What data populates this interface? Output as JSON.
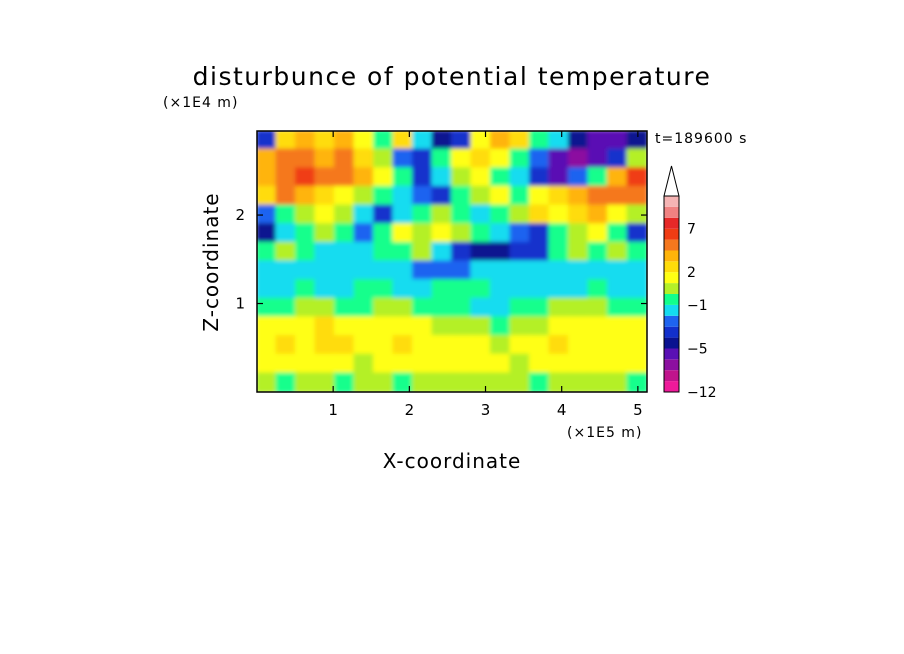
{
  "chart_data": {
    "type": "heatmap",
    "title": "disturbunce of potential temperature",
    "time_label": "t=189600 s",
    "xlabel": "X-coordinate",
    "ylabel": "Z-coordinate",
    "x_unit": "(×1E5 m)",
    "y_unit": "(×1E4 m)",
    "xlim": [
      0,
      5.12
    ],
    "ylim": [
      0,
      2.95
    ],
    "x_ticks": [
      1,
      2,
      3,
      4,
      5
    ],
    "y_ticks": [
      1,
      2
    ],
    "x_tick_labels": [
      "1",
      "2",
      "3",
      "4",
      "5"
    ],
    "y_tick_labels": [
      "1",
      "2"
    ],
    "grid": false,
    "colorbar": {
      "labels": [
        {
          "value": 7,
          "text": "7"
        },
        {
          "value": 2,
          "text": "2"
        },
        {
          "value": -1,
          "text": "−1"
        },
        {
          "value": -5,
          "text": "−5"
        },
        {
          "value": -12,
          "text": "−12"
        }
      ],
      "levels": [
        {
          "to": -10,
          "color": "#ee1a9a"
        },
        {
          "to": -8,
          "color": "#c0148c"
        },
        {
          "to": -6,
          "color": "#8c10a0"
        },
        {
          "to": -5,
          "color": "#5a10b4"
        },
        {
          "to": -4,
          "color": "#0a1290"
        },
        {
          "to": -3,
          "color": "#1230cc"
        },
        {
          "to": -2,
          "color": "#1e64f0"
        },
        {
          "to": -1,
          "color": "#14dcf0"
        },
        {
          "to": 0,
          "color": "#12ff8c"
        },
        {
          "to": 1,
          "color": "#b4f028"
        },
        {
          "to": 2,
          "color": "#ffff14"
        },
        {
          "to": 3,
          "color": "#ffdc0a"
        },
        {
          "to": 4,
          "color": "#ffb40a"
        },
        {
          "to": 6,
          "color": "#f5781e"
        },
        {
          "to": 7,
          "color": "#f03c14"
        },
        {
          "to": 8,
          "color": "#e62828"
        },
        {
          "to": 9,
          "color": "#f08282"
        },
        {
          "to": 10,
          "color": "#f5b4b4"
        }
      ]
    },
    "field": {
      "description_levels": "rows from top (z≈2.95) to bottom (z≈0), columns from x=0 to x=5.12",
      "rows": [
        [
          -3,
          3,
          4,
          3,
          4,
          2,
          0,
          3,
          -1,
          -4,
          -3,
          2,
          4,
          3,
          0,
          -1,
          -4,
          -5,
          -5,
          -4
        ],
        [
          4,
          5,
          6,
          4,
          5,
          3,
          1,
          -2,
          -3,
          0,
          2,
          3,
          2,
          0,
          -2,
          -5,
          -7,
          -5,
          -3,
          1
        ],
        [
          4,
          6,
          7,
          5,
          6,
          4,
          2,
          0,
          -3,
          -1,
          1,
          2,
          0,
          -1,
          -3,
          -5,
          -2,
          0,
          4,
          7
        ],
        [
          3,
          5,
          4,
          3,
          2,
          1,
          0,
          -1,
          -2,
          -3,
          0,
          1,
          2,
          0,
          2,
          3,
          4,
          5,
          6,
          5
        ],
        [
          -2,
          0,
          1,
          2,
          1,
          -1,
          -3,
          -1,
          0,
          1,
          0,
          -1,
          0,
          1,
          3,
          2,
          3,
          4,
          2,
          1
        ],
        [
          -4,
          -1,
          0,
          1,
          0,
          -2,
          0,
          2,
          1,
          2,
          1,
          0,
          -1,
          -2,
          -3,
          0,
          1,
          2,
          0,
          -3
        ],
        [
          0,
          1,
          0,
          -1,
          -1,
          -1,
          0,
          0,
          1,
          -1,
          -3,
          -4,
          -4,
          -3,
          -3,
          0,
          1,
          0,
          1,
          0
        ],
        [
          -1,
          -1,
          -1,
          -1,
          -1,
          -1,
          -1,
          -1,
          -2,
          -2,
          -2,
          -1,
          -1,
          -1,
          -1,
          -1,
          -1,
          -1,
          -1,
          -1
        ],
        [
          -1,
          -1,
          0,
          -1,
          -1,
          0,
          0,
          -1,
          -1,
          0,
          0,
          0,
          -1,
          -1,
          -1,
          -1,
          -1,
          0,
          -1,
          -1
        ],
        [
          0,
          0,
          1,
          1,
          0,
          0,
          1,
          1,
          0,
          0,
          0,
          -1,
          -1,
          0,
          0,
          1,
          1,
          1,
          0,
          0
        ],
        [
          2,
          2,
          2,
          3,
          2,
          2,
          2,
          2,
          2,
          1,
          1,
          1,
          0,
          1,
          1,
          2,
          2,
          2,
          2,
          2
        ],
        [
          2,
          3,
          2,
          3,
          3,
          2,
          2,
          3,
          2,
          2,
          2,
          2,
          1,
          2,
          2,
          3,
          2,
          2,
          2,
          2
        ],
        [
          2,
          2,
          2,
          2,
          2,
          1,
          2,
          2,
          2,
          2,
          2,
          2,
          2,
          1,
          2,
          2,
          2,
          2,
          2,
          2
        ],
        [
          1,
          0,
          1,
          1,
          0,
          1,
          1,
          0,
          1,
          1,
          1,
          1,
          1,
          1,
          0,
          1,
          1,
          1,
          1,
          0
        ]
      ]
    }
  }
}
